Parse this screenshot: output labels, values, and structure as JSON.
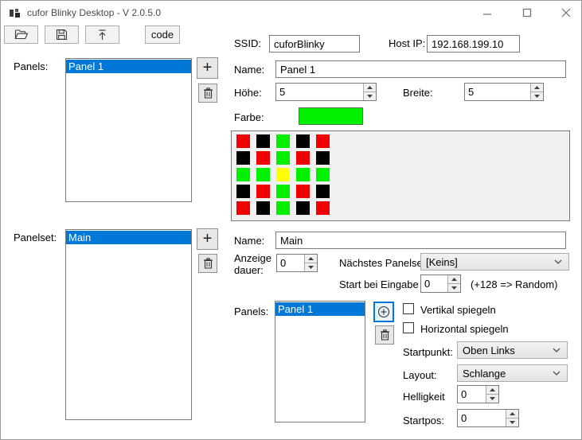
{
  "colors": {
    "accent": "#0078D7",
    "panel_green": "#00F000",
    "panel_red": "#F00000",
    "panel_yellow": "#FFFF00",
    "panel_black": "#000000"
  },
  "window": {
    "title": "cufor Blinky Desktop - V 2.0.5.0",
    "icons": {
      "app": "pixel-blocks-logo",
      "minimize": "minimize",
      "maximize": "maximize",
      "close": "close"
    }
  },
  "toolbar": {
    "open_icon": "folder-open",
    "save_icon": "floppy-disk",
    "upload_icon": "upload-arrow",
    "code_label": "code"
  },
  "connection": {
    "ssid_label": "SSID:",
    "ssid_value": "cuforBlinky",
    "hostip_label": "Host IP:",
    "hostip_value": "192.168.199.10"
  },
  "panel_section": {
    "label": "Panels:",
    "items": [
      "Panel 1"
    ],
    "name_label": "Name:",
    "name_value": "Panel 1",
    "hoehe_label": "Höhe:",
    "hoehe_value": "5",
    "breite_label": "Breite:",
    "breite_value": "5",
    "farbe_label": "Farbe:",
    "farbe_color": "#00F000",
    "grid": {
      "rows": 5,
      "cols": 5,
      "palette": {
        "R": "#F00000",
        "G": "#00F000",
        "Y": "#FFFF00",
        "K": "#000000"
      },
      "cells": [
        [
          "R",
          "K",
          "G",
          "K",
          "R"
        ],
        [
          "K",
          "R",
          "G",
          "R",
          "K"
        ],
        [
          "G",
          "G",
          "Y",
          "G",
          "G"
        ],
        [
          "K",
          "R",
          "G",
          "R",
          "K"
        ],
        [
          "R",
          "K",
          "G",
          "K",
          "R"
        ]
      ]
    }
  },
  "panelset_section": {
    "label": "Panelset:",
    "items": [
      "Main"
    ],
    "name_label": "Name:",
    "name_value": "Main",
    "anzeige_label": "Anzeige dauer:",
    "anzeige_value": "0",
    "naechstes_label": "Nächstes Panelset",
    "naechstes_value": "[Keins]",
    "start_label": "Start bei Eingabe",
    "start_value": "0",
    "random_hint": "(+128 => Random)",
    "panels_label": "Panels:",
    "panel_items": [
      "Panel 1"
    ],
    "vertikal_label": "Vertikal spiegeln",
    "horizontal_label": "Horizontal spiegeln",
    "startpunkt_label": "Startpunkt:",
    "startpunkt_value": "Oben Links",
    "layout_label": "Layout:",
    "layout_value": "Schlange",
    "helligkeit_label": "Helligkeit",
    "helligkeit_value": "0",
    "startpos_label": "Startpos:",
    "startpos_value": "0"
  }
}
